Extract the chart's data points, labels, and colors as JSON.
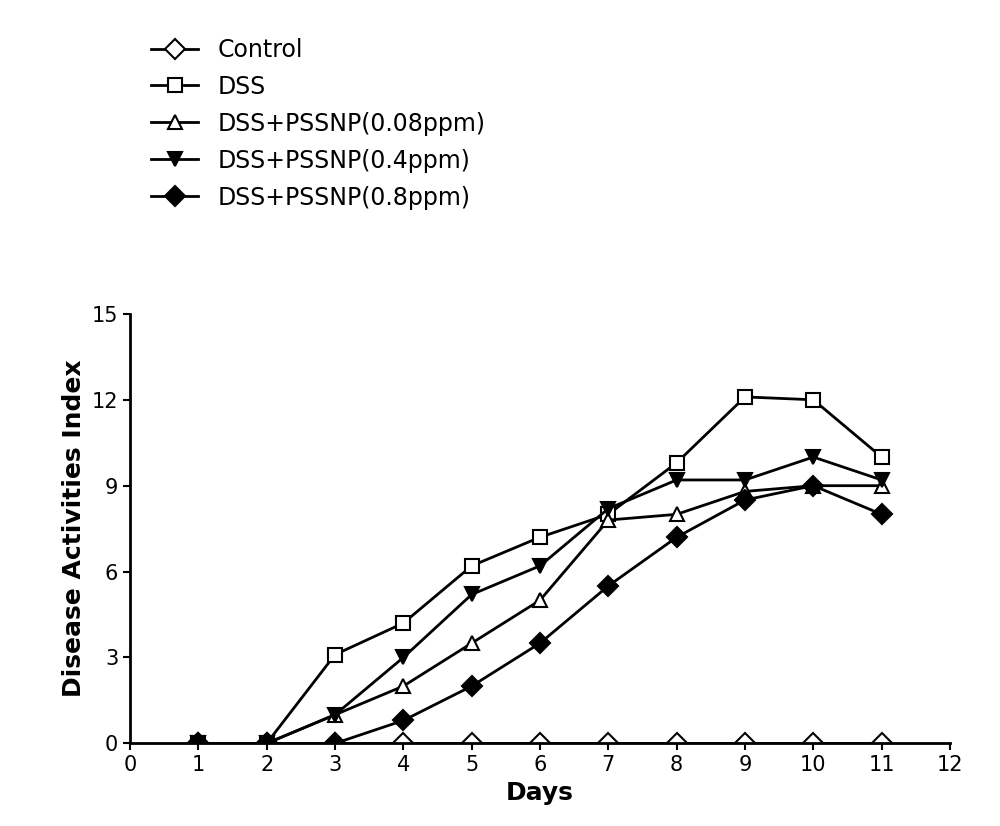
{
  "days": [
    1,
    2,
    3,
    4,
    5,
    6,
    7,
    8,
    9,
    10,
    11
  ],
  "control": [
    0,
    0,
    0,
    0,
    0,
    0,
    0,
    0,
    0,
    0,
    0
  ],
  "dss": [
    0,
    0,
    3.1,
    4.2,
    6.2,
    7.2,
    8.0,
    9.8,
    12.1,
    12.0,
    10.0
  ],
  "dss_008": [
    0,
    0,
    1.0,
    2.0,
    3.5,
    5.0,
    7.8,
    8.0,
    8.8,
    9.0,
    9.0
  ],
  "dss_04": [
    0,
    0,
    1.0,
    3.0,
    5.2,
    6.2,
    8.2,
    9.2,
    9.2,
    10.0,
    9.2
  ],
  "dss_08": [
    0,
    0,
    0,
    0.8,
    2.0,
    3.5,
    5.5,
    7.2,
    8.5,
    9.0,
    8.0
  ],
  "xlabel": "Days",
  "ylabel": "Disease Activities Index",
  "xlim": [
    0,
    12
  ],
  "ylim": [
    0,
    15
  ],
  "xticks": [
    0,
    1,
    2,
    3,
    4,
    5,
    6,
    7,
    8,
    9,
    10,
    11,
    12
  ],
  "yticks": [
    0,
    3,
    6,
    9,
    12,
    15
  ],
  "legend_labels": [
    "Control",
    "DSS",
    "DSS+PSSNP(0.08ppm)",
    "DSS+PSSNP(0.4ppm)",
    "DSS+PSSNP(0.8ppm)"
  ],
  "line_color": "#000000",
  "background_color": "#ffffff",
  "fontsize_label": 18,
  "fontsize_tick": 15,
  "fontsize_legend": 17,
  "linewidth": 2.0,
  "markersize": 10
}
